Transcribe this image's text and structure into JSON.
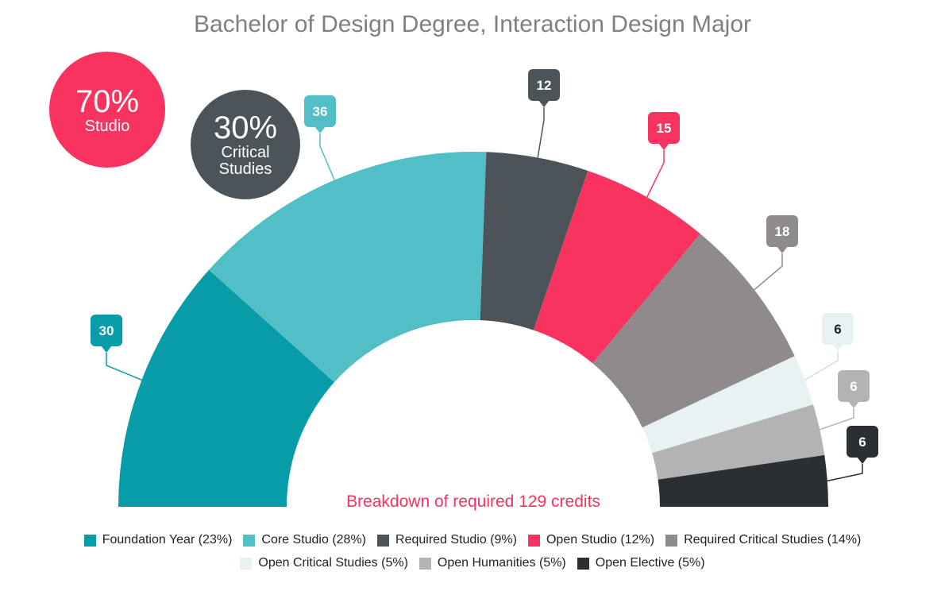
{
  "chart_data": {
    "type": "pie",
    "variant": "semi-donut",
    "title": "Bachelor of Design Degree, Interaction Design Major",
    "center_label": "Breakdown of required 129 credits",
    "summary": [
      {
        "value": "70%",
        "label": "Studio",
        "color": "#f9335f"
      },
      {
        "value": "30%",
        "label": "Critical\nStudies",
        "color": "#4d5459"
      }
    ],
    "series": [
      {
        "label": "Foundation Year (23%)",
        "value": 30,
        "color": "#079ca7",
        "text_color": "#ffffff"
      },
      {
        "label": "Core Studio (28%)",
        "value": 36,
        "color": "#52bec6",
        "text_color": "#ffffff"
      },
      {
        "label": "Required Studio (9%)",
        "value": 12,
        "color": "#4d5459",
        "text_color": "#ffffff"
      },
      {
        "label": "Open Studio (12%)",
        "value": 15,
        "color": "#f9335f",
        "text_color": "#ffffff"
      },
      {
        "label": "Required Critical Studies (14%)",
        "value": 18,
        "color": "#8f8a8b",
        "text_color": "#ffffff"
      },
      {
        "label": "Open Critical Studies (5%)",
        "value": 6,
        "color": "#e8f2f2",
        "text_color": "#222222"
      },
      {
        "label": "Open Humanities (5%)",
        "value": 6,
        "color": "#b3b3b3",
        "text_color": "#ffffff"
      },
      {
        "label": "Open Elective (5%)",
        "value": 6,
        "color": "#2b2e33",
        "text_color": "#ffffff"
      }
    ],
    "legend_position": "bottom"
  }
}
